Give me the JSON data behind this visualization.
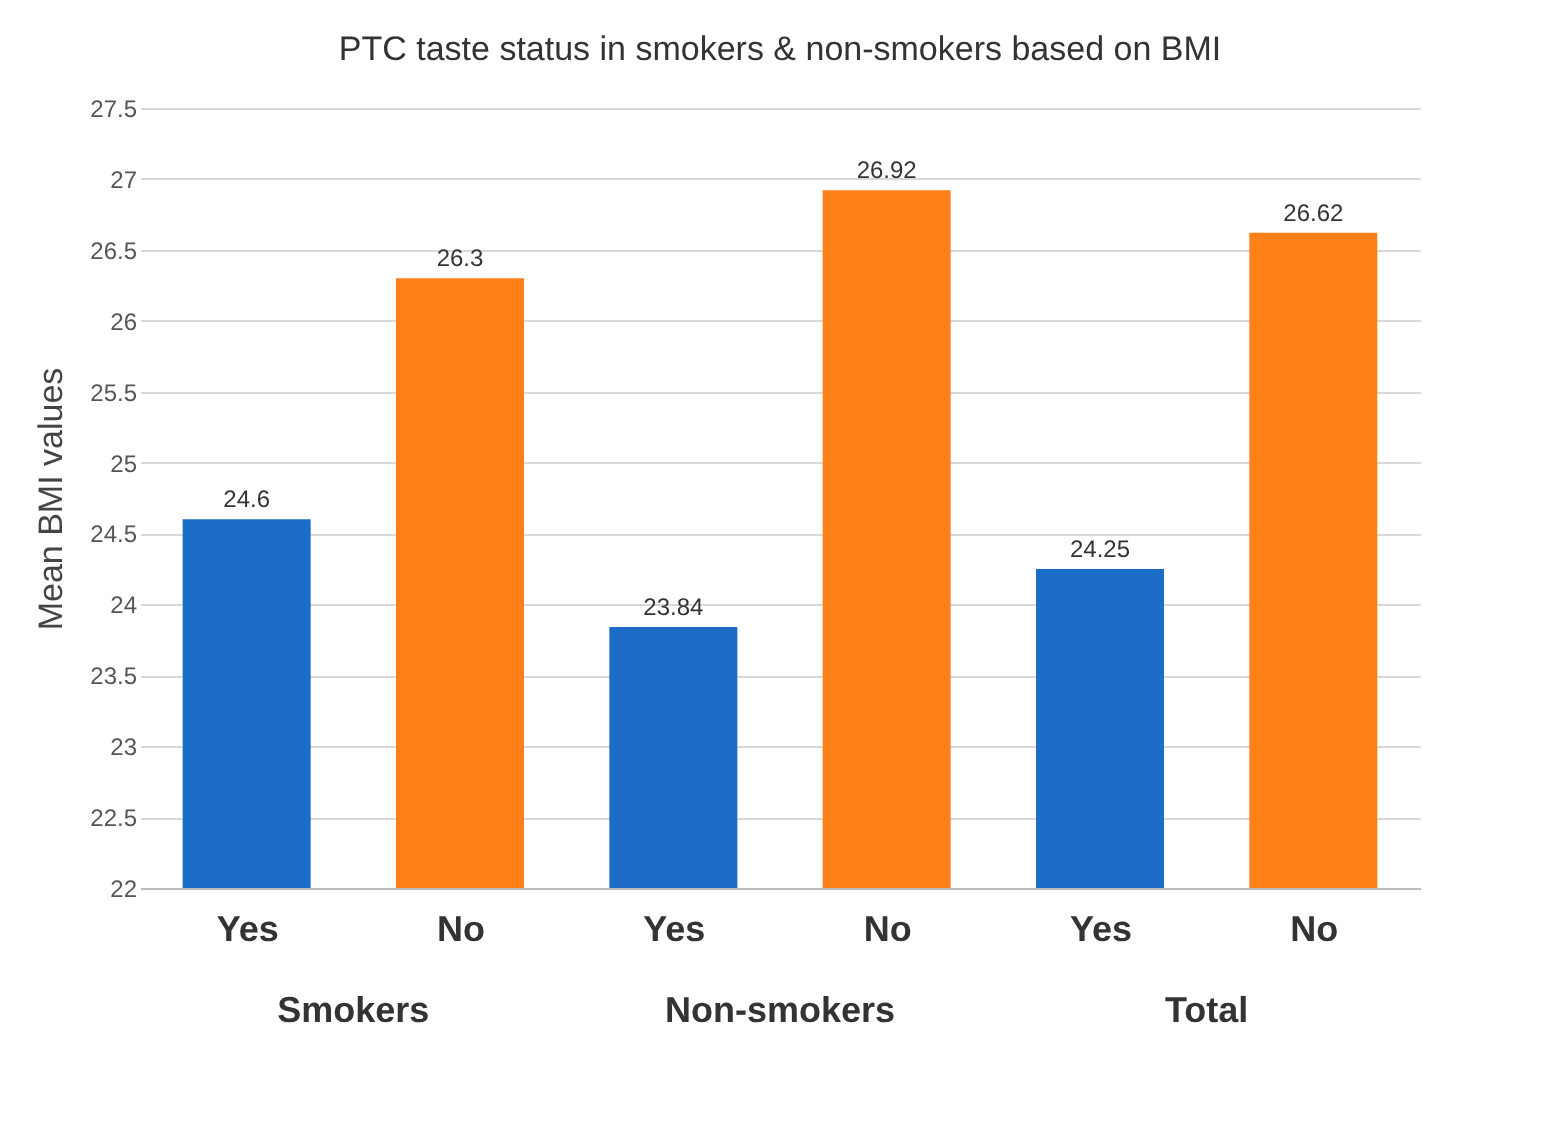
{
  "chart_data": {
    "type": "bar",
    "title": "PTC taste status in smokers & non-smokers based on BMI",
    "ylabel": "Mean BMI values",
    "categories": [
      "Yes",
      "No",
      "Yes",
      "No",
      "Yes",
      "No"
    ],
    "values": [
      24.6,
      26.3,
      23.84,
      26.92,
      24.25,
      26.62
    ],
    "colors": [
      "#1b6cc6",
      "#fd7f17",
      "#1b6cc6",
      "#fd7f17",
      "#1b6cc6",
      "#fd7f17"
    ],
    "ylim": [
      22,
      27.5
    ],
    "yticks": [
      22,
      22.5,
      23,
      23.5,
      24,
      24.5,
      25,
      25.5,
      26,
      26.5,
      27,
      27.5
    ],
    "grid": "y",
    "data_labels": true,
    "annotations": [
      "Smokers",
      "Non-smokers",
      "Total"
    ]
  }
}
